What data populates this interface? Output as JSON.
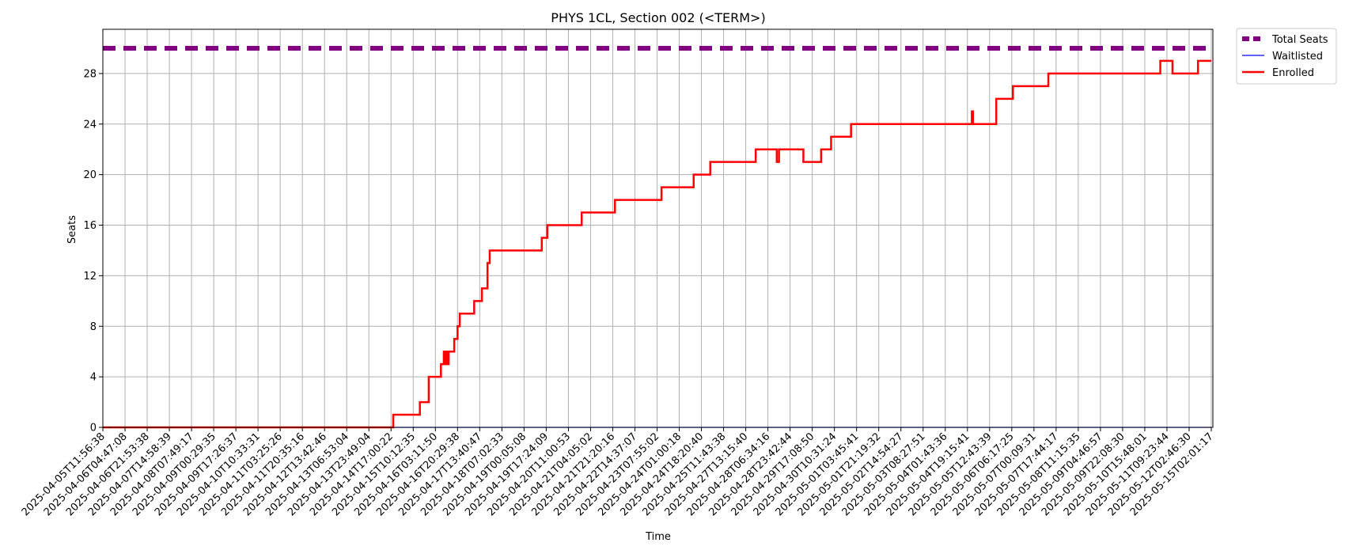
{
  "chart_data": {
    "type": "line",
    "title": "PHYS 1CL, Section 002 (<TERM>)",
    "xlabel": "Time",
    "ylabel": "Seats",
    "ylim": [
      0,
      31.5
    ],
    "yticks": [
      0,
      4,
      8,
      12,
      16,
      20,
      24,
      28
    ],
    "grid": true,
    "legend_position": "outside-top-right",
    "x_ticks": [
      "2025-04-05T11:56:38",
      "2025-04-06T04:47:08",
      "2025-04-06T21:53:38",
      "2025-04-07T14:58:39",
      "2025-04-08T07:49:17",
      "2025-04-09T00:29:35",
      "2025-04-09T17:26:37",
      "2025-04-10T10:33:31",
      "2025-04-11T03:25:26",
      "2025-04-11T20:35:16",
      "2025-04-12T13:42:46",
      "2025-04-13T06:53:04",
      "2025-04-13T23:49:04",
      "2025-04-14T17:00:22",
      "2025-04-15T10:12:35",
      "2025-04-16T03:11:50",
      "2025-04-16T20:29:38",
      "2025-04-17T13:40:47",
      "2025-04-18T07:02:33",
      "2025-04-19T00:05:08",
      "2025-04-19T17:24:09",
      "2025-04-20T11:00:53",
      "2025-04-21T04:05:02",
      "2025-04-21T21:20:16",
      "2025-04-22T14:37:07",
      "2025-04-23T07:55:02",
      "2025-04-24T01:00:18",
      "2025-04-24T18:20:40",
      "2025-04-25T11:43:38",
      "2025-04-27T13:15:40",
      "2025-04-28T06:34:16",
      "2025-04-28T23:42:44",
      "2025-04-29T17:08:50",
      "2025-04-30T10:31:24",
      "2025-05-01T03:45:41",
      "2025-05-01T21:19:32",
      "2025-05-02T14:54:27",
      "2025-05-03T08:27:51",
      "2025-05-04T01:43:36",
      "2025-05-04T19:15:41",
      "2025-05-05T12:43:39",
      "2025-05-06T06:17:25",
      "2025-05-07T00:09:31",
      "2025-05-07T17:44:17",
      "2025-05-08T11:15:35",
      "2025-05-09T04:46:57",
      "2025-05-09T22:08:30",
      "2025-05-10T15:48:01",
      "2025-05-11T09:23:44",
      "2025-05-12T02:46:30",
      "2025-05-15T02:01:17"
    ],
    "series": [
      {
        "name": "Total Seats",
        "color": "#800080",
        "style": "dashed-thick",
        "constant": 30
      },
      {
        "name": "Waitlisted",
        "color": "#0000ff",
        "style": "solid-thin",
        "constant": 0
      },
      {
        "name": "Enrolled",
        "color": "#ff0000",
        "style": "solid",
        "steps": [
          [
            0,
            0
          ],
          [
            13.1,
            1
          ],
          [
            14.3,
            2
          ],
          [
            14.7,
            4
          ],
          [
            15.25,
            5
          ],
          [
            15.38,
            6
          ],
          [
            15.42,
            5
          ],
          [
            15.5,
            6
          ],
          [
            15.55,
            5
          ],
          [
            15.6,
            6
          ],
          [
            15.85,
            7
          ],
          [
            16.0,
            8
          ],
          [
            16.1,
            9
          ],
          [
            16.75,
            10
          ],
          [
            17.1,
            11
          ],
          [
            17.35,
            13
          ],
          [
            17.45,
            14
          ],
          [
            19.8,
            15
          ],
          [
            20.05,
            16
          ],
          [
            21.6,
            17
          ],
          [
            23.1,
            18
          ],
          [
            25.2,
            19
          ],
          [
            26.65,
            20
          ],
          [
            27.4,
            21
          ],
          [
            29.45,
            22
          ],
          [
            30.4,
            21
          ],
          [
            30.5,
            22
          ],
          [
            31.6,
            21
          ],
          [
            32.4,
            22
          ],
          [
            32.85,
            23
          ],
          [
            33.75,
            24
          ],
          [
            39.2,
            25
          ],
          [
            39.25,
            24
          ],
          [
            40.3,
            26
          ],
          [
            41.05,
            27
          ],
          [
            42.65,
            28
          ],
          [
            47.7,
            29
          ],
          [
            48.25,
            28
          ],
          [
            49.4,
            29
          ],
          [
            50.0,
            29
          ]
        ]
      }
    ]
  }
}
